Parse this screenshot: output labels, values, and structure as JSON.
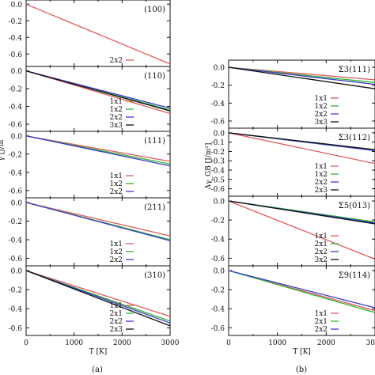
{
  "chart_data": [
    {
      "type": "line",
      "group": "a",
      "panel_label": "(100)",
      "xlim": [
        0,
        3000
      ],
      "ylim": [
        -0.75,
        0.05
      ],
      "yticks": [
        0.0,
        -0.2,
        -0.4,
        -0.6
      ],
      "xticks": [],
      "series": [
        {
          "name": "2x2",
          "color": "#e05c5c",
          "x": [
            0,
            3000
          ],
          "y": [
            0.0,
            -0.72
          ]
        }
      ]
    },
    {
      "type": "line",
      "group": "a",
      "panel_label": "(110)",
      "xlim": [
        0,
        3000
      ],
      "ylim": [
        -0.68,
        0.05
      ],
      "yticks": [
        0.0,
        -0.2,
        -0.4,
        -0.6
      ],
      "xticks": [],
      "series": [
        {
          "name": "1x1",
          "color": "#e05c5c",
          "x": [
            0,
            3000
          ],
          "y": [
            0.0,
            -0.48
          ]
        },
        {
          "name": "1x2",
          "color": "#2fb52f",
          "x": [
            0,
            3000
          ],
          "y": [
            0.0,
            -0.44
          ]
        },
        {
          "name": "2x2",
          "color": "#3a3ad0",
          "x": [
            0,
            3000
          ],
          "y": [
            0.0,
            -0.42
          ]
        },
        {
          "name": "3x3",
          "color": "#111111",
          "x": [
            0,
            3000
          ],
          "y": [
            0.0,
            -0.45
          ]
        }
      ]
    },
    {
      "type": "line",
      "group": "a",
      "panel_label": "(111)",
      "xlim": [
        0,
        3000
      ],
      "ylim": [
        -0.68,
        0.05
      ],
      "yticks": [
        0.0,
        -0.2,
        -0.4,
        -0.6
      ],
      "xticks": [],
      "series": [
        {
          "name": "1x1",
          "color": "#e05c5c",
          "x": [
            0,
            3000
          ],
          "y": [
            0.0,
            -0.28
          ]
        },
        {
          "name": "1x2",
          "color": "#2fb52f",
          "x": [
            0,
            3000
          ],
          "y": [
            0.0,
            -0.31
          ]
        },
        {
          "name": "2x2",
          "color": "#3a3ad0",
          "x": [
            0,
            3000
          ],
          "y": [
            0.0,
            -0.33
          ]
        }
      ]
    },
    {
      "type": "line",
      "group": "a",
      "panel_label": "(211)",
      "xlim": [
        0,
        3000
      ],
      "ylim": [
        -0.68,
        0.05
      ],
      "yticks": [
        0.0,
        -0.2,
        -0.4,
        -0.6
      ],
      "xticks": [],
      "series": [
        {
          "name": "1x1",
          "color": "#e05c5c",
          "x": [
            0,
            3000
          ],
          "y": [
            0.0,
            -0.36
          ]
        },
        {
          "name": "1x2",
          "color": "#2fb52f",
          "x": [
            0,
            3000
          ],
          "y": [
            0.0,
            -0.4
          ]
        },
        {
          "name": "2x2",
          "color": "#3a3ad0",
          "x": [
            0,
            3000
          ],
          "y": [
            0.0,
            -0.41
          ]
        }
      ]
    },
    {
      "type": "line",
      "group": "a",
      "panel_label": "(310)",
      "xlim": [
        0,
        3000
      ],
      "ylim": [
        -0.68,
        0.05
      ],
      "yticks": [
        0.0,
        -0.2,
        -0.4,
        -0.6
      ],
      "xticks": [
        0,
        1000,
        2000,
        3000
      ],
      "xlabel": "T [K]",
      "series": [
        {
          "name": "1x1",
          "color": "#e05c5c",
          "x": [
            0,
            3000
          ],
          "y": [
            0.0,
            -0.48
          ]
        },
        {
          "name": "2x1",
          "color": "#2fb52f",
          "x": [
            0,
            3000
          ],
          "y": [
            0.0,
            -0.53
          ]
        },
        {
          "name": "2x2",
          "color": "#3a3ad0",
          "x": [
            0,
            3000
          ],
          "y": [
            0.0,
            -0.55
          ]
        },
        {
          "name": "2x3",
          "color": "#111111",
          "x": [
            0,
            3000
          ],
          "y": [
            0.0,
            -0.58
          ]
        }
      ]
    },
    {
      "type": "line",
      "group": "b",
      "panel_label": "Σ3(111)",
      "xlim": [
        0,
        3000
      ],
      "ylim": [
        -0.68,
        0.08
      ],
      "yticks": [
        0.0,
        -0.2,
        -0.4,
        -0.6
      ],
      "xticks": [],
      "series": [
        {
          "name": "1x1",
          "color": "#e05c5c",
          "x": [
            0,
            3000
          ],
          "y": [
            0.0,
            -0.14
          ]
        },
        {
          "name": "1x2",
          "color": "#2fb52f",
          "x": [
            0,
            3000
          ],
          "y": [
            0.0,
            -0.17
          ]
        },
        {
          "name": "2x2",
          "color": "#3a3ad0",
          "x": [
            0,
            3000
          ],
          "y": [
            0.0,
            -0.19
          ]
        },
        {
          "name": "3x3",
          "color": "#111111",
          "x": [
            0,
            3000
          ],
          "y": [
            0.0,
            -0.24
          ]
        }
      ]
    },
    {
      "type": "line",
      "group": "b",
      "panel_label": "Σ3(112)",
      "xlim": [
        0,
        3000
      ],
      "ylim": [
        -0.68,
        0.05
      ],
      "yticks": [
        0.0,
        -0.1,
        -0.2,
        -0.3,
        -0.4,
        -0.5,
        -0.6
      ],
      "xticks": [],
      "series": [
        {
          "name": "1x1",
          "color": "#e05c5c",
          "x": [
            0,
            3000
          ],
          "y": [
            0.0,
            -0.33
          ]
        },
        {
          "name": "1x2",
          "color": "#2fb52f",
          "x": [
            0,
            3000
          ],
          "y": [
            0.0,
            -0.19
          ]
        },
        {
          "name": "2x2",
          "color": "#3a3ad0",
          "x": [
            0,
            3000
          ],
          "y": [
            0.0,
            -0.19
          ]
        },
        {
          "name": "2x3",
          "color": "#111111",
          "x": [
            0,
            3000
          ],
          "y": [
            0.0,
            -0.18
          ]
        }
      ]
    },
    {
      "type": "line",
      "group": "b",
      "panel_label": "Σ5(013)",
      "xlim": [
        0,
        3000
      ],
      "ylim": [
        -0.68,
        0.05
      ],
      "yticks": [
        0.0,
        -0.2,
        -0.4,
        -0.6
      ],
      "xticks": [],
      "series": [
        {
          "name": "1x1",
          "color": "#e05c5c",
          "x": [
            0,
            3000
          ],
          "y": [
            0.0,
            -0.61
          ]
        },
        {
          "name": "2x1",
          "color": "#2fb52f",
          "x": [
            0,
            3000
          ],
          "y": [
            0.0,
            -0.22
          ]
        },
        {
          "name": "2x2",
          "color": "#3a3ad0",
          "x": [
            0,
            3000
          ],
          "y": [
            0.0,
            -0.23
          ]
        },
        {
          "name": "3x2",
          "color": "#111111",
          "x": [
            0,
            3000
          ],
          "y": [
            0.0,
            -0.24
          ]
        }
      ]
    },
    {
      "type": "line",
      "group": "b",
      "panel_label": "Σ9(114)",
      "xlim": [
        0,
        3000
      ],
      "ylim": [
        -0.68,
        0.05
      ],
      "yticks": [
        0.0,
        -0.2,
        -0.4,
        -0.6
      ],
      "xticks": [
        0,
        1000,
        2000,
        3000
      ],
      "xlabel": "T [K]",
      "series": [
        {
          "name": "1x1",
          "color": "#e05c5c",
          "x": [
            0,
            3000
          ],
          "y": [
            0.0,
            -0.42
          ]
        },
        {
          "name": "2x1",
          "color": "#2fb52f",
          "x": [
            0,
            3000
          ],
          "y": [
            0.0,
            -0.44
          ]
        },
        {
          "name": "2x2",
          "color": "#3a3ad0",
          "x": [
            0,
            3000
          ],
          "y": [
            0.0,
            -0.39
          ]
        }
      ]
    }
  ],
  "ylabel_a": "γ [J/m",
  "ylabel_b": "Δγ_GB [J/m²]",
  "caption_a": "(a)",
  "caption_b": "(b)"
}
